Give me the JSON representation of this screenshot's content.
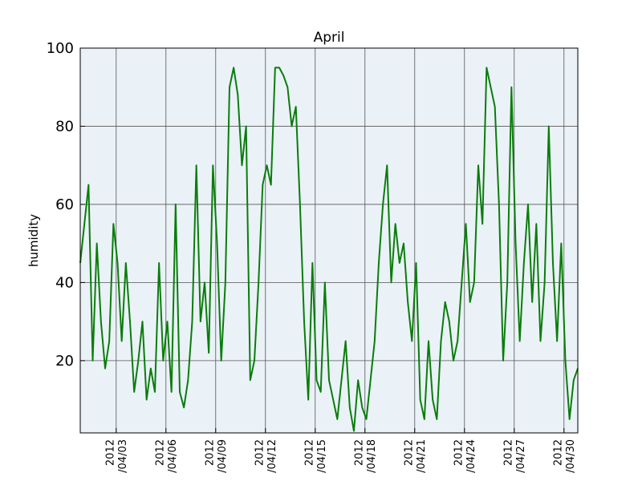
{
  "chart_data": {
    "type": "line",
    "title": "April",
    "y_label": "humidity",
    "x": [
      "2012-03-31T20:00",
      "2012-04-01T02:00",
      "2012-04-01T08:00",
      "2012-04-01T14:00",
      "2012-04-01T20:00",
      "2012-04-02T02:00",
      "2012-04-02T08:00",
      "2012-04-02T14:00",
      "2012-04-02T20:00",
      "2012-04-03T02:00",
      "2012-04-03T08:00",
      "2012-04-03T14:00",
      "2012-04-03T20:00",
      "2012-04-04T02:00",
      "2012-04-04T08:00",
      "2012-04-04T14:00",
      "2012-04-04T20:00",
      "2012-04-05T02:00",
      "2012-04-05T08:00",
      "2012-04-05T14:00",
      "2012-04-05T20:00",
      "2012-04-06T02:00",
      "2012-04-06T08:00",
      "2012-04-06T14:00",
      "2012-04-06T20:00",
      "2012-04-07T02:00",
      "2012-04-07T08:00",
      "2012-04-07T14:00",
      "2012-04-07T20:00",
      "2012-04-08T02:00",
      "2012-04-08T08:00",
      "2012-04-08T14:00",
      "2012-04-08T20:00",
      "2012-04-09T02:00",
      "2012-04-09T08:00",
      "2012-04-09T14:00",
      "2012-04-09T20:00",
      "2012-04-10T02:00",
      "2012-04-10T08:00",
      "2012-04-10T14:00",
      "2012-04-10T20:00",
      "2012-04-11T02:00",
      "2012-04-11T08:00",
      "2012-04-11T14:00",
      "2012-04-11T20:00",
      "2012-04-12T02:00",
      "2012-04-12T08:00",
      "2012-04-12T14:00",
      "2012-04-12T20:00",
      "2012-04-13T02:00",
      "2012-04-13T08:00",
      "2012-04-13T14:00",
      "2012-04-13T20:00",
      "2012-04-14T02:00",
      "2012-04-14T08:00",
      "2012-04-14T14:00",
      "2012-04-14T20:00",
      "2012-04-15T02:00",
      "2012-04-15T08:00",
      "2012-04-15T14:00",
      "2012-04-15T20:00",
      "2012-04-16T02:00",
      "2012-04-16T08:00",
      "2012-04-16T14:00",
      "2012-04-16T20:00",
      "2012-04-17T02:00",
      "2012-04-17T08:00",
      "2012-04-17T14:00",
      "2012-04-17T20:00",
      "2012-04-18T02:00",
      "2012-04-18T08:00",
      "2012-04-18T14:00",
      "2012-04-18T20:00",
      "2012-04-19T02:00",
      "2012-04-19T08:00",
      "2012-04-19T14:00",
      "2012-04-19T20:00",
      "2012-04-20T02:00",
      "2012-04-20T08:00",
      "2012-04-20T14:00",
      "2012-04-20T20:00",
      "2012-04-21T02:00",
      "2012-04-21T08:00",
      "2012-04-21T14:00",
      "2012-04-21T20:00",
      "2012-04-22T02:00",
      "2012-04-22T08:00",
      "2012-04-22T14:00",
      "2012-04-22T20:00",
      "2012-04-23T02:00",
      "2012-04-23T08:00",
      "2012-04-23T14:00",
      "2012-04-23T20:00",
      "2012-04-24T02:00",
      "2012-04-24T08:00",
      "2012-04-24T14:00",
      "2012-04-24T20:00",
      "2012-04-25T02:00",
      "2012-04-25T08:00",
      "2012-04-25T14:00",
      "2012-04-25T20:00",
      "2012-04-26T02:00",
      "2012-04-26T08:00",
      "2012-04-26T14:00",
      "2012-04-26T20:00",
      "2012-04-27T02:00",
      "2012-04-27T08:00",
      "2012-04-27T14:00",
      "2012-04-27T20:00",
      "2012-04-28T02:00",
      "2012-04-28T08:00",
      "2012-04-28T14:00",
      "2012-04-28T20:00",
      "2012-04-29T02:00",
      "2012-04-29T08:00",
      "2012-04-29T14:00",
      "2012-04-29T20:00",
      "2012-04-30T02:00",
      "2012-04-30T08:00",
      "2012-04-30T14:00",
      "2012-04-30T20:00"
    ],
    "series": [
      {
        "color": "#0a7d0a",
        "values": [
          45,
          55,
          65,
          20,
          50,
          30,
          18,
          25,
          55,
          45,
          25,
          45,
          30,
          12,
          20,
          30,
          10,
          18,
          12,
          45,
          20,
          30,
          12,
          60,
          12,
          8,
          15,
          30,
          70,
          30,
          40,
          22,
          70,
          50,
          20,
          40,
          90,
          95,
          88,
          70,
          80,
          15,
          20,
          40,
          65,
          70,
          65,
          95,
          95,
          93,
          90,
          80,
          85,
          60,
          30,
          10,
          45,
          15,
          12,
          40,
          15,
          10,
          5,
          15,
          25,
          8,
          2,
          15,
          8,
          5,
          15,
          25,
          45,
          60,
          70,
          40,
          55,
          45,
          50,
          35,
          25,
          45,
          10,
          5,
          25,
          10,
          5,
          25,
          35,
          30,
          20,
          25,
          40,
          55,
          35,
          40,
          70,
          55,
          95,
          90,
          85,
          60,
          20,
          40,
          90,
          50,
          25,
          45,
          60,
          35,
          55,
          25,
          40,
          80,
          45,
          25,
          50,
          20,
          5,
          15,
          18
        ]
      }
    ],
    "xlim": [
      "2012-03-31T20:00",
      "2012-04-30T20:00"
    ],
    "xticks": [
      {
        "value": "2012-04-03T00:00",
        "label": "2012\n/04/03"
      },
      {
        "value": "2012-04-06T00:00",
        "label": "2012\n/04/06"
      },
      {
        "value": "2012-04-09T00:00",
        "label": "2012\n/04/09"
      },
      {
        "value": "2012-04-12T00:00",
        "label": "2012\n/04/12"
      },
      {
        "value": "2012-04-15T00:00",
        "label": "2012\n/04/15"
      },
      {
        "value": "2012-04-18T00:00",
        "label": "2012\n/04/18"
      },
      {
        "value": "2012-04-21T00:00",
        "label": "2012\n/04/21"
      },
      {
        "value": "2012-04-24T00:00",
        "label": "2012\n/04/24"
      },
      {
        "value": "2012-04-27T00:00",
        "label": "2012\n/04/27"
      },
      {
        "value": "2012-04-30T00:00",
        "label": "2012\n/04/30"
      }
    ],
    "ylim": [
      1.5,
      100
    ],
    "yticks": [
      20,
      40,
      60,
      80,
      100
    ],
    "grid": true
  }
}
